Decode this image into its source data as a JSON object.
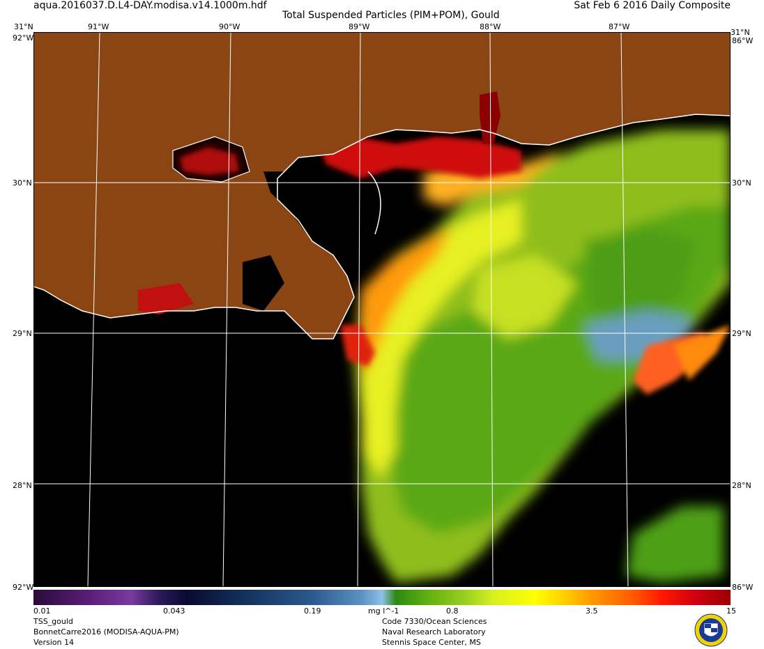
{
  "header": {
    "filename": "aqua.2016037.D.L4-DAY.modisa.v14.1000m.hdf",
    "product_title": "Total Suspended Particles (PIM+POM), Gould",
    "date_label": "Sat Feb  6 2016 Daily Composite"
  },
  "map": {
    "region": "Northern Gulf of Mexico",
    "top_lon_labels": [
      "91°W",
      "90°W",
      "89°W",
      "88°W",
      "87°W"
    ],
    "lat_labels": [
      "31°N",
      "30°N",
      "29°N",
      "28°N"
    ],
    "corner_labels": {
      "top_left": "31°N",
      "top_right": "31°N",
      "edge_w": "92°W",
      "edge_e": "86°W",
      "bottom_left": "92°W",
      "bottom_right": "86°W"
    },
    "colors": {
      "land": "#8b4513",
      "water_nodata": "#000000",
      "coast": "#ffffff",
      "grid": "#ffffff"
    }
  },
  "colorbar": {
    "tick_labels": [
      "0.01",
      "0.043",
      "0.19",
      "0.8",
      "3.5",
      "15"
    ],
    "units": "mg l^-1"
  },
  "footer": {
    "left": [
      "TSS_gould",
      "BonnetCarre2016 (MODISA-AQUA-PM)",
      "Version 14"
    ],
    "right": [
      "Code 7330/Ocean Sciences",
      "Naval Research Laboratory",
      "Stennis Space Center, MS"
    ]
  }
}
